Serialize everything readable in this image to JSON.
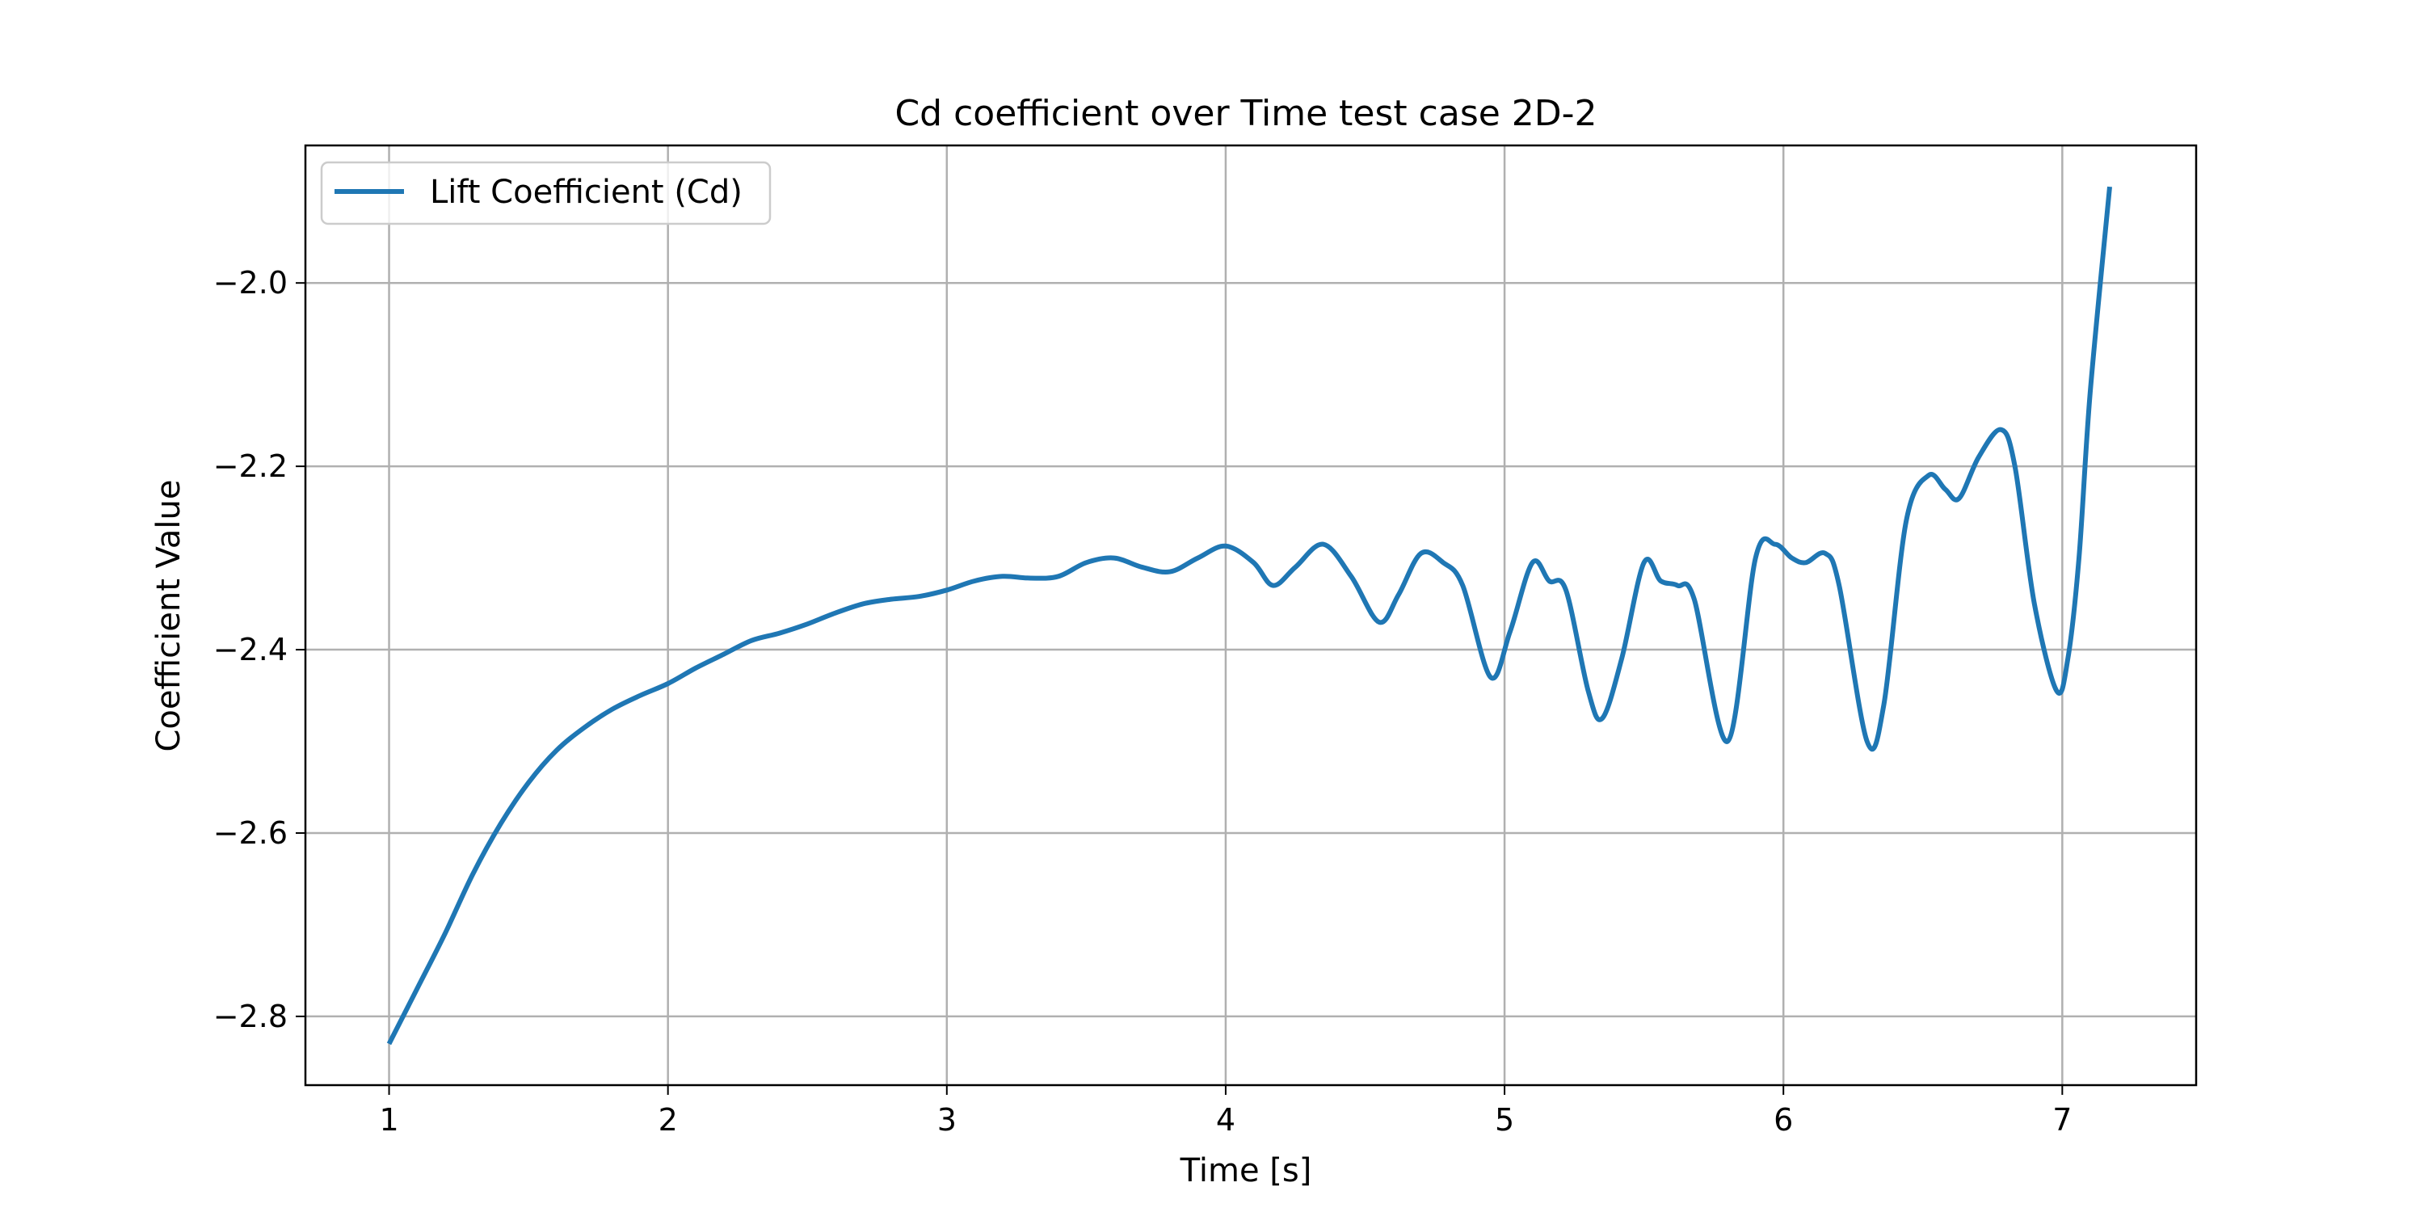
{
  "chart_data": {
    "type": "line",
    "title": "Cd coefficient over Time test case 2D-2",
    "xlabel": "Time [s]",
    "ylabel": "Coefficient Value",
    "xlim": [
      0.7,
      7.48
    ],
    "ylim": [
      -2.875,
      -1.85
    ],
    "xticks": [
      1,
      2,
      3,
      4,
      5,
      6,
      7
    ],
    "xtick_labels": [
      "1",
      "2",
      "3",
      "4",
      "5",
      "6",
      "7"
    ],
    "yticks": [
      -2.8,
      -2.6,
      -2.4,
      -2.2,
      -2.0
    ],
    "ytick_labels": [
      "−2.8",
      "−2.6",
      "−2.4",
      "−2.2",
      "−2.0"
    ],
    "grid": true,
    "legend_position": "top-left",
    "colors": {
      "line": "#1f77b4",
      "grid": "#b0b0b0",
      "frame": "#000000"
    },
    "series": [
      {
        "name": "Lift Coefficient (Cd)",
        "x": [
          1.0,
          1.1,
          1.2,
          1.3,
          1.4,
          1.5,
          1.6,
          1.7,
          1.8,
          1.9,
          2.0,
          2.1,
          2.2,
          2.3,
          2.4,
          2.5,
          2.6,
          2.7,
          2.8,
          2.9,
          3.0,
          3.1,
          3.2,
          3.3,
          3.4,
          3.5,
          3.6,
          3.7,
          3.8,
          3.9,
          4.0,
          4.1,
          4.17,
          4.25,
          4.35,
          4.45,
          4.55,
          4.62,
          4.7,
          4.78,
          4.85,
          4.95,
          5.02,
          5.1,
          5.16,
          5.22,
          5.3,
          5.35,
          5.42,
          5.5,
          5.56,
          5.62,
          5.68,
          5.8,
          5.9,
          5.97,
          6.03,
          6.08,
          6.15,
          6.2,
          6.3,
          6.36,
          6.44,
          6.52,
          6.58,
          6.63,
          6.7,
          6.78,
          6.83,
          6.9,
          6.98,
          7.02,
          7.06,
          7.1,
          7.17
        ],
        "y": [
          -2.83,
          -2.77,
          -2.71,
          -2.645,
          -2.59,
          -2.545,
          -2.51,
          -2.485,
          -2.465,
          -2.45,
          -2.437,
          -2.42,
          -2.405,
          -2.39,
          -2.382,
          -2.372,
          -2.36,
          -2.35,
          -2.345,
          -2.342,
          -2.335,
          -2.325,
          -2.32,
          -2.322,
          -2.32,
          -2.305,
          -2.3,
          -2.31,
          -2.315,
          -2.3,
          -2.287,
          -2.305,
          -2.33,
          -2.31,
          -2.285,
          -2.32,
          -2.37,
          -2.34,
          -2.295,
          -2.305,
          -2.33,
          -2.43,
          -2.38,
          -2.305,
          -2.325,
          -2.335,
          -2.445,
          -2.475,
          -2.41,
          -2.305,
          -2.325,
          -2.33,
          -2.345,
          -2.5,
          -2.3,
          -2.285,
          -2.3,
          -2.305,
          -2.295,
          -2.33,
          -2.5,
          -2.46,
          -2.26,
          -2.21,
          -2.225,
          -2.235,
          -2.19,
          -2.16,
          -2.2,
          -2.35,
          -2.445,
          -2.41,
          -2.3,
          -2.12,
          -1.895
        ]
      }
    ]
  }
}
